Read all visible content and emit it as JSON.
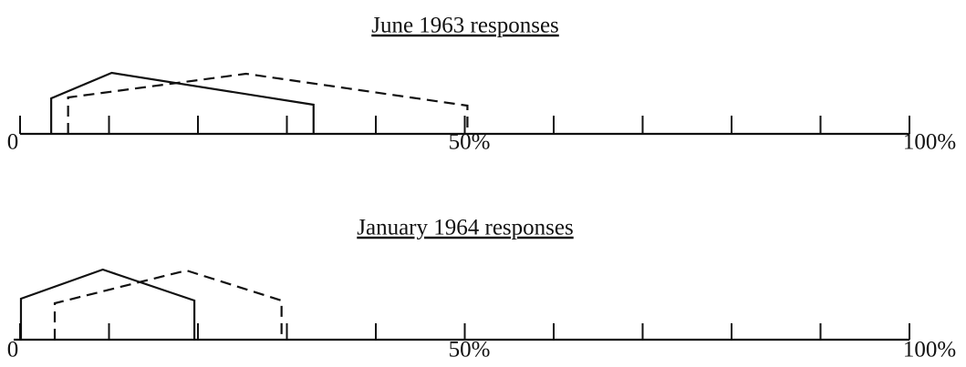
{
  "chart_data": [
    {
      "type": "line",
      "title": "June 1963 responses",
      "xlim": [
        0,
        100
      ],
      "xticks": [
        0,
        {
          "value": 50,
          "label": "50%"
        },
        {
          "value": 100,
          "label": "100%"
        }
      ],
      "minor_xticks": [
        10,
        20,
        30,
        40,
        60,
        70,
        80,
        90
      ],
      "ylim": [
        0,
        80
      ],
      "series": [
        {
          "linestyle": "solid",
          "color": "#111111",
          "x": [
            3.5,
            3.5,
            10.3,
            33,
            33
          ],
          "values": [
            0,
            39,
            67,
            32,
            0
          ]
        },
        {
          "linestyle": "dashed",
          "color": "#111111",
          "x": [
            5.4,
            5.4,
            25.4,
            50.3,
            50.3
          ],
          "values": [
            0,
            40,
            66,
            31,
            0
          ]
        }
      ]
    },
    {
      "type": "line",
      "title": "January 1964 responses",
      "xlim": [
        0,
        100
      ],
      "xticks": [
        0,
        {
          "value": 50,
          "label": "50%"
        },
        {
          "value": 100,
          "label": "100%"
        }
      ],
      "minor_xticks": [
        10,
        20,
        30,
        40,
        60,
        70,
        80,
        90
      ],
      "ylim": [
        0,
        80
      ],
      "series": [
        {
          "linestyle": "solid",
          "color": "#111111",
          "x": [
            0.1,
            0.1,
            9.3,
            19.6,
            19.6
          ],
          "values": [
            0,
            45,
            77,
            43,
            0
          ]
        },
        {
          "linestyle": "dashed",
          "color": "#111111",
          "x": [
            3.9,
            3.9,
            18.7,
            29.4,
            29.4
          ],
          "values": [
            0,
            40,
            76,
            43,
            0
          ]
        }
      ]
    }
  ]
}
